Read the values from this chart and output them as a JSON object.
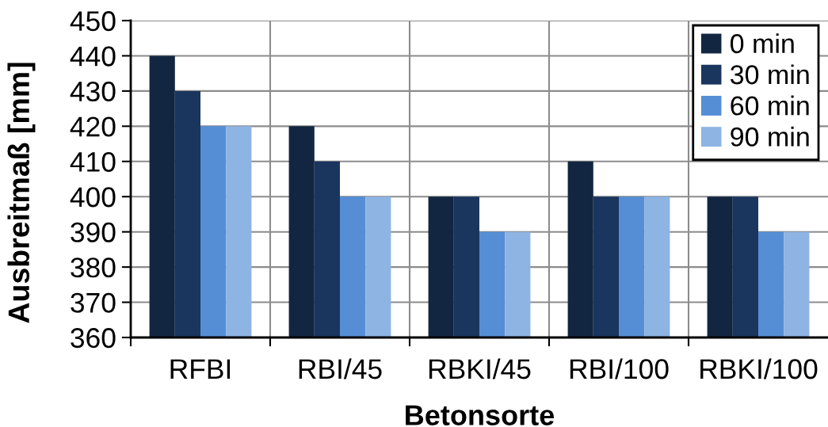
{
  "chart_data": {
    "type": "bar",
    "xlabel": "Betonsorte",
    "ylabel": "Ausbreitmaß [mm]",
    "categories": [
      "RFBI",
      "RBI/45",
      "RBKI/45",
      "RBI/100",
      "RBKI/100"
    ],
    "series": [
      {
        "name": "0 min",
        "color": "#132641",
        "values": [
          440,
          420,
          400,
          410,
          400
        ]
      },
      {
        "name": "30 min",
        "color": "#1a365e",
        "values": [
          430,
          410,
          400,
          400,
          400
        ]
      },
      {
        "name": "60 min",
        "color": "#558ed5",
        "values": [
          420,
          400,
          390,
          400,
          390
        ]
      },
      {
        "name": "90 min",
        "color": "#8eb4e3",
        "values": [
          420,
          400,
          390,
          400,
          390
        ]
      }
    ],
    "ylim": [
      360,
      450
    ],
    "yticks": [
      360,
      370,
      380,
      390,
      400,
      410,
      420,
      430,
      440,
      450
    ],
    "grid": true,
    "legend": "top right"
  }
}
